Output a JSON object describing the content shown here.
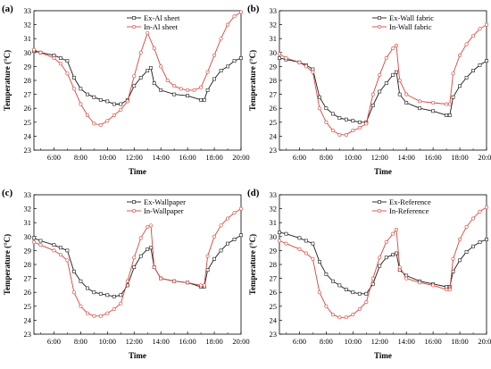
{
  "colors": {
    "ex": "#1a1a1a",
    "in": "#d9453a"
  },
  "chart_data": [
    {
      "type": "line",
      "panel_label": "(a)",
      "xlabel": "Time",
      "ylabel": "Temperature (°C)",
      "xticks": [
        "6:00",
        "8:00",
        "10:00",
        "12:00",
        "14:00",
        "16:00",
        "18:00",
        "20:00"
      ],
      "xlim": [
        4.5,
        20
      ],
      "ylim": [
        23,
        33
      ],
      "legend_position": "top-right",
      "grid": false,
      "series": [
        {
          "name": "Ex-Al sheet",
          "color": "#1a1a1a",
          "marker": "square",
          "x": [
            4.5,
            5.0,
            6.0,
            6.5,
            7.0,
            7.5,
            8.0,
            8.5,
            9.0,
            9.5,
            10.0,
            10.5,
            11.0,
            11.5,
            12.0,
            12.5,
            13.0,
            13.25,
            13.5,
            14.0,
            15.0,
            16.0,
            17.0,
            17.25,
            17.5,
            18.0,
            18.5,
            19.0,
            19.5,
            20.0
          ],
          "y": [
            30.1,
            30.0,
            29.8,
            29.6,
            29.4,
            28.2,
            27.4,
            27.0,
            26.8,
            26.6,
            26.5,
            26.3,
            26.3,
            26.6,
            27.6,
            28.2,
            28.7,
            28.9,
            27.8,
            27.3,
            27.0,
            26.9,
            26.6,
            26.6,
            27.3,
            28.1,
            28.7,
            29.0,
            29.4,
            29.6
          ]
        },
        {
          "name": "In-Al sheet",
          "color": "#d9453a",
          "marker": "circle",
          "x": [
            4.5,
            5.0,
            6.0,
            6.5,
            7.0,
            7.5,
            8.0,
            8.5,
            9.0,
            9.5,
            10.0,
            10.5,
            11.0,
            11.5,
            12.0,
            12.5,
            13.0,
            13.5,
            14.0,
            14.5,
            15.0,
            15.5,
            16.0,
            16.5,
            17.0,
            17.5,
            18.0,
            18.5,
            19.0,
            19.5,
            20.0
          ],
          "y": [
            30.2,
            30.0,
            29.6,
            29.2,
            28.5,
            27.4,
            26.3,
            25.5,
            24.9,
            24.8,
            25.1,
            25.5,
            25.9,
            26.5,
            28.3,
            30.0,
            31.4,
            30.3,
            29.0,
            28.0,
            27.6,
            27.4,
            27.3,
            27.3,
            27.5,
            28.6,
            29.8,
            31.0,
            32.0,
            32.6,
            32.9
          ]
        }
      ]
    },
    {
      "type": "line",
      "panel_label": "(b)",
      "xlabel": "Time",
      "ylabel": "Temperature (°C)",
      "xticks": [
        "6:00",
        "8:00",
        "10:00",
        "12:00",
        "14:00",
        "16:00",
        "18:00",
        "20:00"
      ],
      "xlim": [
        4.5,
        20
      ],
      "ylim": [
        23,
        33
      ],
      "legend_position": "top-right",
      "grid": false,
      "series": [
        {
          "name": "Ex-Wall fabric",
          "color": "#1a1a1a",
          "marker": "square",
          "x": [
            4.5,
            5.0,
            6.0,
            6.5,
            7.0,
            7.5,
            8.0,
            8.5,
            9.0,
            9.5,
            10.0,
            10.5,
            11.0,
            11.5,
            12.0,
            12.5,
            13.0,
            13.25,
            13.5,
            14.0,
            15.0,
            16.0,
            17.0,
            17.25,
            17.5,
            18.0,
            18.5,
            19.0,
            19.5,
            20.0
          ],
          "y": [
            29.6,
            29.5,
            29.3,
            29.1,
            28.8,
            26.8,
            26.0,
            25.6,
            25.3,
            25.2,
            25.1,
            25.0,
            25.0,
            26.2,
            27.2,
            27.8,
            28.4,
            28.6,
            27.0,
            26.4,
            26.0,
            25.8,
            25.5,
            25.5,
            26.8,
            27.6,
            28.2,
            28.7,
            29.1,
            29.4
          ]
        },
        {
          "name": "In-Wall fabric",
          "color": "#d9453a",
          "marker": "circle",
          "x": [
            4.5,
            5.0,
            6.0,
            6.5,
            7.0,
            7.5,
            8.0,
            8.5,
            9.0,
            9.5,
            10.0,
            10.5,
            11.0,
            11.5,
            12.0,
            12.5,
            13.0,
            13.25,
            13.5,
            14.0,
            15.0,
            16.0,
            17.0,
            17.25,
            17.5,
            18.0,
            18.5,
            19.0,
            19.5,
            20.0
          ],
          "y": [
            29.9,
            29.6,
            29.3,
            29.0,
            28.6,
            26.0,
            25.0,
            24.4,
            24.1,
            24.1,
            24.4,
            24.6,
            24.9,
            27.0,
            28.4,
            29.6,
            30.3,
            30.5,
            28.0,
            27.0,
            26.5,
            26.4,
            26.3,
            26.3,
            28.5,
            29.8,
            30.6,
            31.2,
            31.7,
            32.0
          ]
        }
      ]
    },
    {
      "type": "line",
      "panel_label": "(c)",
      "xlabel": "Time",
      "ylabel": "Temperature (°C)",
      "xticks": [
        "6:00",
        "8:00",
        "10:00",
        "12:00",
        "14:00",
        "16:00",
        "18:00",
        "20:00"
      ],
      "xlim": [
        4.5,
        20
      ],
      "ylim": [
        23,
        33
      ],
      "legend_position": "top-right",
      "grid": false,
      "series": [
        {
          "name": "Ex-Wallpaper",
          "color": "#1a1a1a",
          "marker": "square",
          "x": [
            4.5,
            5.0,
            6.0,
            6.5,
            7.0,
            7.5,
            8.0,
            8.5,
            9.0,
            9.5,
            10.0,
            10.5,
            11.0,
            11.5,
            12.0,
            12.5,
            13.0,
            13.25,
            13.5,
            14.0,
            15.0,
            16.0,
            17.0,
            17.25,
            17.5,
            18.0,
            18.5,
            19.0,
            19.5,
            20.0
          ],
          "y": [
            29.9,
            29.7,
            29.4,
            29.2,
            29.0,
            27.5,
            26.8,
            26.3,
            26.0,
            25.9,
            25.8,
            25.7,
            25.8,
            26.5,
            27.8,
            28.6,
            29.1,
            29.2,
            27.8,
            27.0,
            26.8,
            26.7,
            26.4,
            26.4,
            27.6,
            28.4,
            29.0,
            29.5,
            29.8,
            30.1
          ]
        },
        {
          "name": "In-Wallpaper",
          "color": "#d9453a",
          "marker": "circle",
          "x": [
            4.5,
            5.0,
            6.0,
            6.5,
            7.0,
            7.5,
            8.0,
            8.5,
            9.0,
            9.5,
            10.0,
            10.5,
            11.0,
            11.5,
            12.0,
            12.5,
            13.0,
            13.25,
            13.5,
            14.0,
            15.0,
            16.0,
            17.0,
            17.25,
            17.5,
            18.0,
            18.5,
            19.0,
            19.5,
            20.0
          ],
          "y": [
            29.6,
            29.4,
            29.0,
            28.7,
            28.3,
            26.0,
            25.0,
            24.5,
            24.3,
            24.3,
            24.5,
            24.8,
            25.2,
            26.8,
            28.5,
            29.9,
            30.7,
            30.8,
            27.8,
            27.0,
            26.8,
            26.7,
            26.5,
            26.5,
            28.6,
            30.0,
            30.8,
            31.3,
            31.7,
            32.0
          ]
        }
      ]
    },
    {
      "type": "line",
      "panel_label": "(d)",
      "xlabel": "Time",
      "ylabel": "Temperature (°C)",
      "xticks": [
        "6:00",
        "8:00",
        "10:00",
        "12:00",
        "14:00",
        "16:00",
        "18:00",
        "20:00"
      ],
      "xlim": [
        4.5,
        20
      ],
      "ylim": [
        23,
        33
      ],
      "legend_position": "top-right",
      "grid": false,
      "series": [
        {
          "name": "Ex-Reference",
          "color": "#1a1a1a",
          "marker": "square",
          "x": [
            4.5,
            5.0,
            6.0,
            6.5,
            7.0,
            7.5,
            8.0,
            8.5,
            9.0,
            9.5,
            10.0,
            10.5,
            11.0,
            11.5,
            12.0,
            12.5,
            13.0,
            13.25,
            13.5,
            14.0,
            15.0,
            16.0,
            17.0,
            17.25,
            17.5,
            18.0,
            18.5,
            19.0,
            19.5,
            20.0
          ],
          "y": [
            30.3,
            30.2,
            29.9,
            29.7,
            29.5,
            28.2,
            27.3,
            26.8,
            26.5,
            26.2,
            26.0,
            25.9,
            25.9,
            26.6,
            27.9,
            28.5,
            28.7,
            28.8,
            27.6,
            27.2,
            26.8,
            26.6,
            26.4,
            26.4,
            27.5,
            28.3,
            28.9,
            29.3,
            29.6,
            29.8
          ]
        },
        {
          "name": "In-Reference",
          "color": "#d9453a",
          "marker": "circle",
          "x": [
            4.5,
            5.0,
            6.0,
            6.5,
            7.0,
            7.5,
            8.0,
            8.5,
            9.0,
            9.5,
            10.0,
            10.5,
            11.0,
            11.5,
            12.0,
            12.5,
            13.0,
            13.25,
            13.5,
            14.0,
            15.0,
            16.0,
            17.0,
            17.25,
            17.5,
            18.0,
            18.5,
            19.0,
            19.5,
            20.0
          ],
          "y": [
            29.7,
            29.5,
            29.1,
            28.8,
            28.4,
            26.0,
            25.0,
            24.4,
            24.2,
            24.2,
            24.4,
            24.8,
            25.3,
            27.0,
            28.5,
            29.6,
            30.2,
            30.5,
            27.8,
            27.0,
            26.7,
            26.5,
            26.2,
            26.2,
            28.4,
            29.8,
            30.7,
            31.3,
            31.8,
            32.1
          ]
        }
      ]
    }
  ]
}
